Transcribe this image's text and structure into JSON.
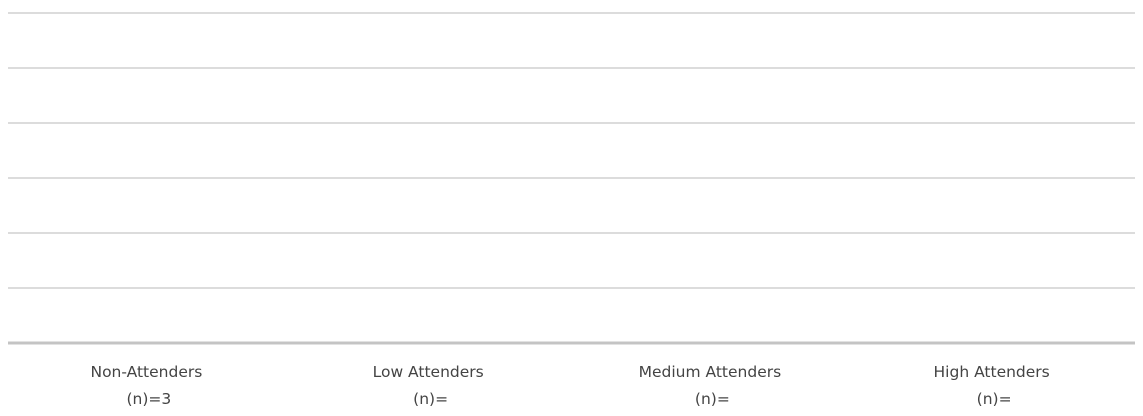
{
  "chart_data": {
    "type": "bar",
    "title": "",
    "xlabel": "",
    "ylabel": "",
    "grid": true,
    "legend": "none",
    "categories": [
      {
        "line1": "Non-Attenders",
        "line2": "(n)=3"
      },
      {
        "line1": "Low Attenders",
        "line2": "(n)="
      },
      {
        "line1": "Medium Attenders",
        "line2": "(n)="
      },
      {
        "line1": "High Attenders",
        "line2": "(n)="
      }
    ],
    "values": [
      null,
      null,
      null,
      null
    ],
    "gridline_count": 6,
    "colors": {
      "gridline": "#d0d0d0",
      "baseline": "#c4c4c4",
      "label_text": "#444444"
    }
  }
}
